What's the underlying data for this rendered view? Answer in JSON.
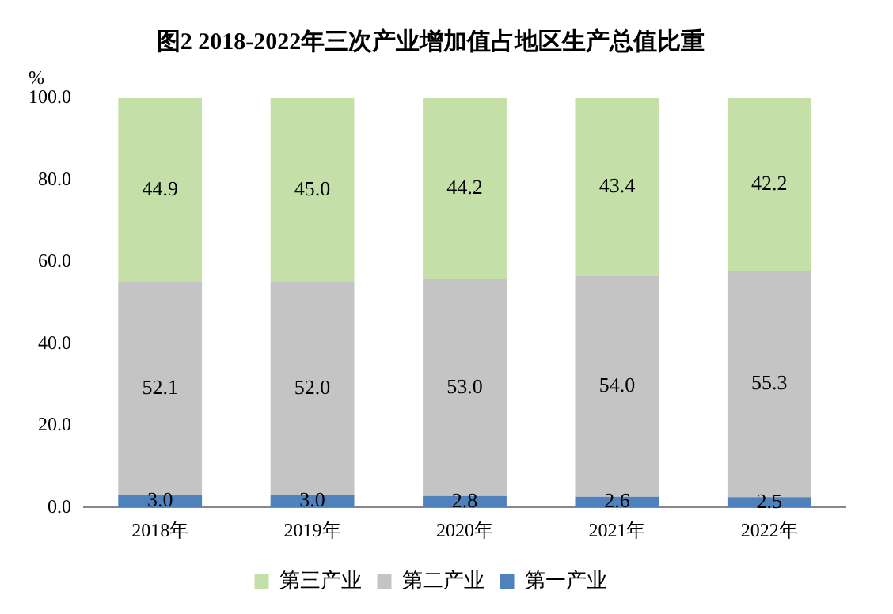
{
  "chart_data": {
    "type": "bar",
    "title": "图2 2018-2022年三次产业增加值占地区生产总值比重",
    "ylabel": "%",
    "categories": [
      "2018年",
      "2019年",
      "2020年",
      "2021年",
      "2022年"
    ],
    "stacked": true,
    "legend": "bottom",
    "grid": false,
    "ylim": [
      0,
      100
    ],
    "yticks": [
      {
        "value": 0,
        "label": "0.0"
      },
      {
        "value": 20,
        "label": "20.0"
      },
      {
        "value": 40,
        "label": "40.0"
      },
      {
        "value": 60,
        "label": "60.0"
      },
      {
        "value": 80,
        "label": "80.0"
      },
      {
        "value": 100,
        "label": "100.0"
      }
    ],
    "series": [
      {
        "name": "第一产业",
        "color": "#4f81bd",
        "values": [
          3.0,
          3.0,
          2.8,
          2.6,
          2.5
        ],
        "value_labels": [
          "3.0",
          "3.0",
          "2.8",
          "2.6",
          "2.5"
        ]
      },
      {
        "name": "第二产业",
        "color": "#c4c4c4",
        "values": [
          52.1,
          52.0,
          53.0,
          54.0,
          55.3
        ],
        "value_labels": [
          "52.1",
          "52.0",
          "53.0",
          "54.0",
          "55.3"
        ]
      },
      {
        "name": "第三产业",
        "color": "#c4e0a8",
        "values": [
          44.9,
          45.0,
          44.2,
          43.4,
          42.2
        ],
        "value_labels": [
          "44.9",
          "45.0",
          "44.2",
          "43.4",
          "42.2"
        ]
      }
    ]
  }
}
